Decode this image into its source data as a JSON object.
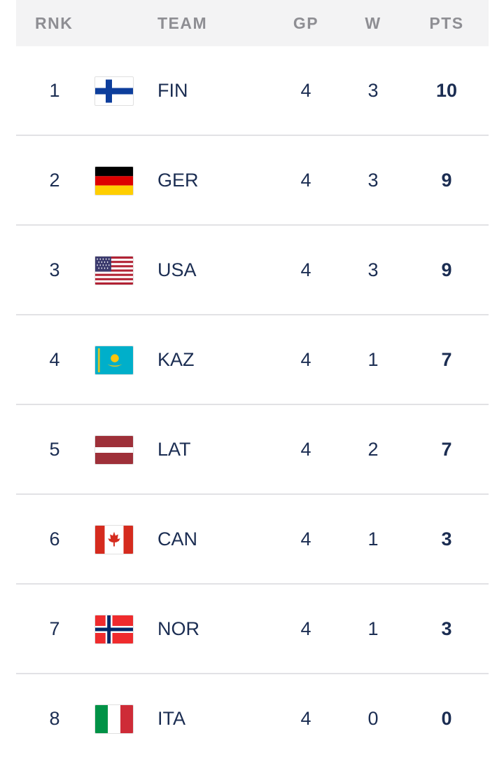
{
  "header": {
    "rank": "RNK",
    "team": "TEAM",
    "gp": "GP",
    "w": "W",
    "pts": "PTS"
  },
  "rows": [
    {
      "rank": "1",
      "team": "FIN",
      "gp": "4",
      "w": "3",
      "pts": "10",
      "flag_icon": "finland-flag-icon"
    },
    {
      "rank": "2",
      "team": "GER",
      "gp": "4",
      "w": "3",
      "pts": "9",
      "flag_icon": "germany-flag-icon"
    },
    {
      "rank": "3",
      "team": "USA",
      "gp": "4",
      "w": "3",
      "pts": "9",
      "flag_icon": "usa-flag-icon"
    },
    {
      "rank": "4",
      "team": "KAZ",
      "gp": "4",
      "w": "1",
      "pts": "7",
      "flag_icon": "kazakhstan-flag-icon"
    },
    {
      "rank": "5",
      "team": "LAT",
      "gp": "4",
      "w": "2",
      "pts": "7",
      "flag_icon": "latvia-flag-icon"
    },
    {
      "rank": "6",
      "team": "CAN",
      "gp": "4",
      "w": "1",
      "pts": "3",
      "flag_icon": "canada-flag-icon"
    },
    {
      "rank": "7",
      "team": "NOR",
      "gp": "4",
      "w": "1",
      "pts": "3",
      "flag_icon": "norway-flag-icon"
    },
    {
      "rank": "8",
      "team": "ITA",
      "gp": "4",
      "w": "0",
      "pts": "0",
      "flag_icon": "italy-flag-icon"
    }
  ],
  "colors": {
    "text": "#1b2d52",
    "header_text": "#8e8e93",
    "header_bg": "#f3f3f4",
    "divider": "#e2e2e5"
  }
}
